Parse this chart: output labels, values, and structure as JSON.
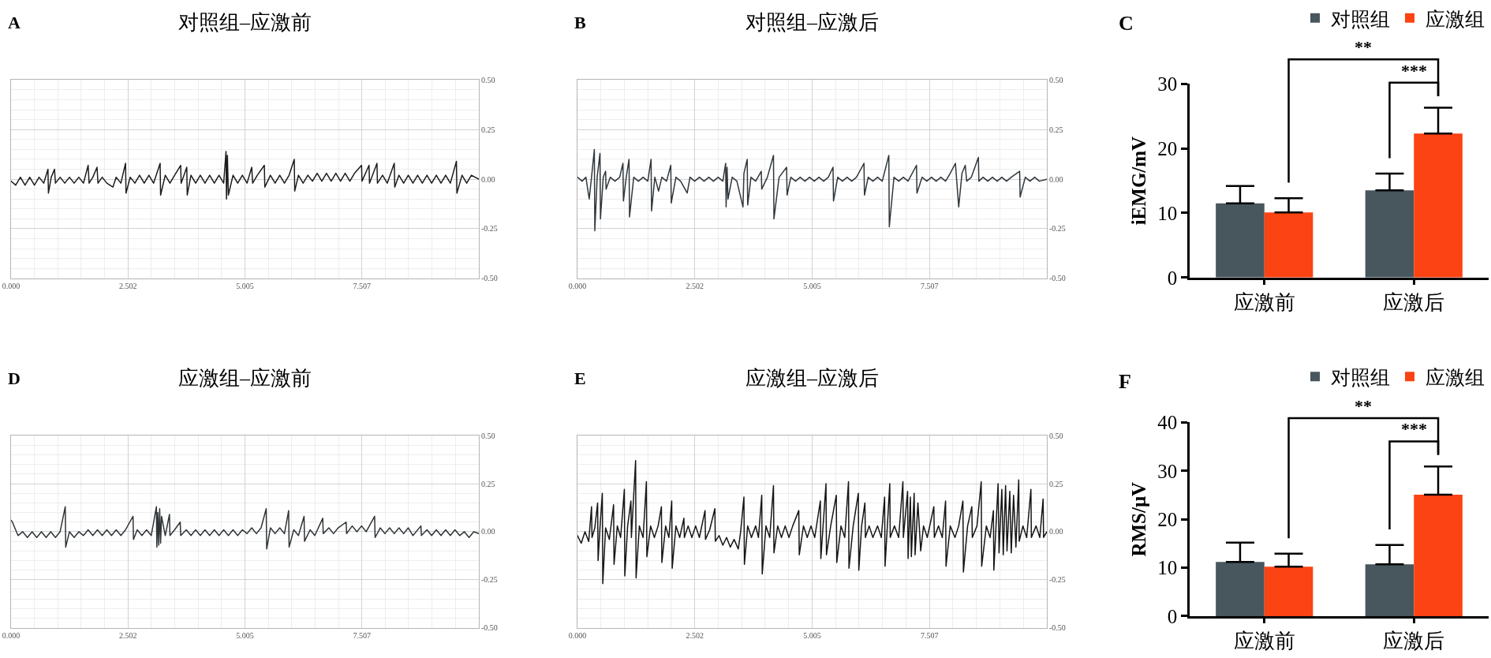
{
  "chart_data": [
    {
      "type": "line",
      "title": "对照组–应激前",
      "annotations": [
        "A"
      ],
      "series": [
        {
          "color": "#1c1c1c",
          "x": [
            0,
            0.1,
            0.2,
            0.3,
            0.4,
            0.5,
            0.6,
            0.7,
            0.79,
            0.8,
            0.86,
            0.93,
            0.95,
            1.05,
            1.15,
            1.25,
            1.35,
            1.45,
            1.55,
            1.65,
            1.67,
            1.75,
            1.84,
            1.86,
            1.95,
            2.05,
            2.18,
            2.25,
            2.35,
            2.45,
            2.46,
            2.55,
            2.65,
            2.75,
            2.85,
            2.95,
            3.05,
            3.19,
            3.2,
            3.3,
            3.4,
            3.5,
            3.63,
            3.64,
            3.76,
            3.77,
            3.85,
            3.95,
            4.05,
            4.15,
            4.25,
            4.35,
            4.45,
            4.55,
            4.6,
            4.61,
            4.63,
            4.65,
            4.75,
            4.85,
            4.95,
            5.05,
            5.15,
            5.17,
            5.27,
            5.42,
            5.43,
            5.55,
            5.65,
            5.75,
            5.85,
            5.95,
            6.06,
            6.07,
            6.15,
            6.25,
            6.35,
            6.45,
            6.55,
            6.65,
            6.75,
            6.85,
            6.95,
            7.05,
            7.15,
            7.25,
            7.35,
            7.5,
            7.51,
            7.66,
            7.67,
            7.83,
            7.84,
            7.95,
            8.05,
            8.2,
            8.21,
            8.3,
            8.4,
            8.5,
            8.6,
            8.7,
            8.8,
            8.9,
            9,
            9.1,
            9.2,
            9.3,
            9.4,
            9.53,
            9.54,
            9.65,
            9.75,
            9.85,
            10.01
          ],
          "values": [
            -0.01,
            -0.03,
            0.01,
            -0.03,
            0.01,
            -0.03,
            0.01,
            -0.02,
            0.05,
            -0.07,
            0.01,
            0.05,
            -0.02,
            0.01,
            -0.02,
            0.01,
            -0.02,
            0.01,
            -0.02,
            0.07,
            -0.02,
            0.01,
            0.06,
            -0.02,
            0.01,
            -0.02,
            -0.04,
            0.01,
            -0.02,
            0.08,
            -0.07,
            0.01,
            -0.02,
            0.02,
            -0.02,
            0.02,
            -0.02,
            0.08,
            -0.08,
            0.02,
            -0.02,
            0.02,
            0.07,
            -0.02,
            0.06,
            -0.08,
            0.02,
            -0.02,
            0.02,
            -0.02,
            0.02,
            -0.02,
            0.02,
            -0.02,
            0.14,
            -0.1,
            0.12,
            -0.08,
            0.02,
            -0.02,
            0.02,
            -0.02,
            0.06,
            -0.02,
            0.02,
            0.07,
            -0.04,
            0.02,
            -0.02,
            0.02,
            -0.02,
            0.02,
            0.1,
            -0.06,
            0.02,
            -0.02,
            0.02,
            -0.01,
            0.03,
            -0.01,
            0.03,
            -0.01,
            0.03,
            -0.01,
            0.03,
            -0.01,
            0.03,
            0.07,
            -0.01,
            0.07,
            -0.02,
            0.08,
            -0.02,
            0.02,
            -0.02,
            0.08,
            -0.04,
            0.02,
            -0.02,
            0.02,
            -0.02,
            0.02,
            -0.02,
            0.02,
            -0.02,
            0.02,
            -0.02,
            0.02,
            -0.02,
            0.09,
            -0.07,
            0.02,
            -0.02,
            0.02,
            0
          ]
        }
      ],
      "xlim": [
        0,
        10.01
      ],
      "xticks": [
        {
          "value": 0,
          "label": "0.000"
        },
        {
          "value": 2.502,
          "label": "2.502"
        },
        {
          "value": 5.005,
          "label": "5.005"
        },
        {
          "value": 7.507,
          "label": "7.507"
        }
      ],
      "ylim": [
        -0.5,
        0.5
      ],
      "yticks": [
        {
          "value": -0.5,
          "label": "-0.50"
        },
        {
          "value": -0.25,
          "label": "-0.25"
        },
        {
          "value": 0,
          "label": "0.00"
        },
        {
          "value": 0.25,
          "label": "0.25"
        },
        {
          "value": 0.5,
          "label": "0.50"
        }
      ],
      "grid": true
    },
    {
      "type": "line",
      "title": "对照组–应激后",
      "annotations": [
        "B"
      ],
      "series": [
        {
          "color": "#30373c",
          "x": [
            0,
            0.1,
            0.18,
            0.25,
            0.3,
            0.36,
            0.37,
            0.42,
            0.48,
            0.49,
            0.55,
            0.6,
            0.61,
            0.7,
            0.8,
            0.9,
            0.97,
            0.98,
            1.04,
            1.1,
            1.11,
            1.2,
            1.3,
            1.4,
            1.5,
            1.57,
            1.58,
            1.65,
            1.73,
            1.8,
            1.9,
            1.99,
            2,
            2.1,
            2.2,
            2.34,
            2.4,
            2.5,
            2.6,
            2.7,
            2.8,
            2.9,
            3,
            3.1,
            3.16,
            3.17,
            3.19,
            3.21,
            3.3,
            3.4,
            3.53,
            3.55,
            3.62,
            3.63,
            3.7,
            3.8,
            3.92,
            3.93,
            4.05,
            4.18,
            4.19,
            4.3,
            4.46,
            4.47,
            4.55,
            4.65,
            4.75,
            4.85,
            4.95,
            5.05,
            5.15,
            5.25,
            5.35,
            5.45,
            5.46,
            5.55,
            5.65,
            5.75,
            5.85,
            5.95,
            6.11,
            6.12,
            6.2,
            6.3,
            6.4,
            6.5,
            6.64,
            6.65,
            6.75,
            6.85,
            6.95,
            7.05,
            7.23,
            7.24,
            7.35,
            7.45,
            7.55,
            7.65,
            7.75,
            7.85,
            7.95,
            8.06,
            8.13,
            8.2,
            8.27,
            8.3,
            8.4,
            8.55,
            8.56,
            8.65,
            8.75,
            8.85,
            8.95,
            9.05,
            9.15,
            9.25,
            9.43,
            9.44,
            9.55,
            9.65,
            9.75,
            9.85,
            10.01
          ],
          "values": [
            0.01,
            -0.01,
            0.01,
            -0.1,
            0.01,
            0.15,
            -0.26,
            0.01,
            0.13,
            -0.2,
            0.01,
            0.04,
            -0.05,
            0.01,
            -0.01,
            0.01,
            0.08,
            -0.11,
            0.01,
            0.1,
            -0.19,
            0.01,
            -0.01,
            0.01,
            -0.01,
            0.1,
            -0.16,
            0.01,
            -0.06,
            0.01,
            -0.01,
            0.07,
            -0.12,
            0.01,
            -0.01,
            -0.07,
            0.01,
            -0.01,
            0.01,
            -0.01,
            0.01,
            -0.01,
            0.01,
            -0.01,
            0.08,
            -0.14,
            0.06,
            -0.1,
            0.01,
            -0.01,
            -0.14,
            0.03,
            0.1,
            -0.13,
            0.01,
            -0.01,
            0.04,
            -0.05,
            0.01,
            0.12,
            -0.2,
            0.01,
            0.06,
            -0.08,
            0.01,
            -0.01,
            0.01,
            -0.01,
            0.01,
            -0.01,
            0.01,
            -0.01,
            0.01,
            0.06,
            -0.11,
            0.01,
            -0.01,
            0.01,
            -0.01,
            0.01,
            0.08,
            -0.08,
            0.01,
            -0.01,
            0.01,
            -0.01,
            0.12,
            -0.24,
            0.01,
            -0.01,
            0.01,
            -0.01,
            0.07,
            -0.07,
            0.01,
            -0.01,
            0.01,
            -0.01,
            0.01,
            -0.01,
            0.03,
            0.08,
            -0.14,
            0.03,
            0.07,
            -0.01,
            0.01,
            0.11,
            -0.01,
            0.01,
            -0.01,
            0.01,
            -0.01,
            0.01,
            -0.01,
            0.01,
            0.04,
            -0.09,
            0.01,
            -0.01,
            0.01,
            -0.01,
            0
          ]
        }
      ],
      "xlim": [
        0,
        10.01
      ],
      "xticks": [
        {
          "value": 0,
          "label": "0.000"
        },
        {
          "value": 2.502,
          "label": "2.502"
        },
        {
          "value": 5.005,
          "label": "5.005"
        },
        {
          "value": 7.507,
          "label": "7.507"
        }
      ],
      "ylim": [
        -0.5,
        0.5
      ],
      "yticks": [
        {
          "value": -0.5,
          "label": "-0.50"
        },
        {
          "value": -0.25,
          "label": "-0.25"
        },
        {
          "value": 0,
          "label": "0.00"
        },
        {
          "value": 0.25,
          "label": "0.25"
        },
        {
          "value": 0.5,
          "label": "0.50"
        }
      ],
      "grid": true
    },
    {
      "type": "bar",
      "annotations": [
        "C",
        "**",
        "***"
      ],
      "categories": [
        "应激前",
        "应激后"
      ],
      "series": [
        {
          "name": "对照组",
          "color": "#48565e",
          "values": [
            11.5,
            13.5
          ],
          "errors": [
            [
              11.5,
              14.2
            ],
            [
              13.5,
              16.1
            ]
          ]
        },
        {
          "name": "应激组",
          "color": "#fc4314",
          "values": [
            10.1,
            22.3
          ],
          "errors": [
            [
              10.1,
              12.3
            ],
            [
              22.3,
              26.3
            ]
          ]
        }
      ],
      "ylabel": "iEMG/mV",
      "ylim": [
        0,
        30
      ],
      "yticks": [
        0,
        10,
        20,
        30
      ],
      "legend": "top right"
    },
    {
      "type": "line",
      "title": "应激组–应激前",
      "annotations": [
        "D"
      ],
      "series": [
        {
          "color": "#2f3437",
          "x": [
            0,
            0.03,
            0.08,
            0.15,
            0.25,
            0.35,
            0.45,
            0.55,
            0.65,
            0.75,
            0.85,
            0.95,
            1.05,
            1.16,
            1.17,
            1.25,
            1.35,
            1.45,
            1.55,
            1.65,
            1.75,
            1.85,
            1.95,
            2.05,
            2.15,
            2.25,
            2.35,
            2.45,
            2.61,
            2.62,
            2.7,
            2.8,
            2.9,
            3,
            3.11,
            3.12,
            3.14,
            3.16,
            3.18,
            3.2,
            3.22,
            3.3,
            3.39,
            3.4,
            3.5,
            3.62,
            3.63,
            3.75,
            3.85,
            3.95,
            4.05,
            4.15,
            4.25,
            4.35,
            4.45,
            4.55,
            4.65,
            4.75,
            4.85,
            4.95,
            5.05,
            5.15,
            5.25,
            5.35,
            5.46,
            5.47,
            5.55,
            5.65,
            5.75,
            5.85,
            5.94,
            5.95,
            6.05,
            6.15,
            6.27,
            6.28,
            6.4,
            6.5,
            6.67,
            6.68,
            6.8,
            6.9,
            7,
            7.17,
            7.18,
            7.3,
            7.4,
            7.5,
            7.6,
            7.78,
            7.79,
            7.9,
            8,
            8.1,
            8.2,
            8.3,
            8.4,
            8.5,
            8.6,
            8.77,
            8.78,
            8.9,
            9,
            9.1,
            9.2,
            9.3,
            9.4,
            9.5,
            9.6,
            9.7,
            9.8,
            9.9,
            10.01
          ],
          "values": [
            0.06,
            0.05,
            0.02,
            -0.02,
            0,
            -0.03,
            0,
            -0.03,
            0,
            -0.03,
            0,
            -0.03,
            0,
            0.13,
            -0.08,
            0,
            -0.03,
            0,
            -0.02,
            0.01,
            -0.02,
            0.01,
            -0.02,
            0.01,
            -0.02,
            0.01,
            -0.02,
            0.01,
            0.08,
            -0.04,
            0.01,
            -0.02,
            0.01,
            -0.02,
            0.13,
            -0.08,
            0.1,
            -0.07,
            0.12,
            -0.06,
            0.08,
            -0.02,
            0.09,
            -0.02,
            0.01,
            0.05,
            -0.02,
            0.01,
            -0.02,
            0.01,
            -0.02,
            0.01,
            -0.02,
            0.01,
            -0.02,
            0.01,
            -0.02,
            0.01,
            -0.02,
            0.01,
            -0.01,
            0.02,
            -0.01,
            0.02,
            0.12,
            -0.09,
            0.02,
            -0.01,
            0.02,
            -0.01,
            0.11,
            -0.08,
            0.01,
            -0.02,
            0.08,
            -0.05,
            0.01,
            -0.02,
            0.07,
            -0.01,
            0.02,
            -0.01,
            0.02,
            0.05,
            -0.01,
            0.03,
            0,
            0.03,
            0,
            0.08,
            -0.03,
            0.02,
            -0.01,
            0.02,
            -0.01,
            0.02,
            -0.01,
            0.02,
            -0.02,
            0.03,
            -0.02,
            0.01,
            -0.02,
            0.01,
            -0.02,
            0.01,
            -0.02,
            0.01,
            -0.02,
            0,
            -0.03,
            0,
            -0.01
          ]
        }
      ],
      "xlim": [
        0,
        10.01
      ],
      "xticks": [
        {
          "value": 0,
          "label": "0.000"
        },
        {
          "value": 2.502,
          "label": "2.502"
        },
        {
          "value": 5.005,
          "label": "5.005"
        },
        {
          "value": 7.507,
          "label": "7.507"
        }
      ],
      "ylim": [
        -0.5,
        0.5
      ],
      "yticks": [
        {
          "value": -0.5,
          "label": "-0.50"
        },
        {
          "value": -0.25,
          "label": "-0.25"
        },
        {
          "value": 0,
          "label": "0.00"
        },
        {
          "value": 0.25,
          "label": "0.25"
        },
        {
          "value": 0.5,
          "label": "0.50"
        }
      ],
      "grid": true
    },
    {
      "type": "line",
      "title": "应激组–应激后",
      "annotations": [
        "E"
      ],
      "series": [
        {
          "color": "#151515",
          "x": [
            0,
            0.08,
            0.16,
            0.24,
            0.3,
            0.31,
            0.37,
            0.43,
            0.44,
            0.48,
            0.53,
            0.54,
            0.6,
            0.68,
            0.77,
            0.78,
            0.85,
            0.92,
            1,
            1.01,
            1.07,
            1.14,
            1.15,
            1.24,
            1.25,
            1.32,
            1.4,
            1.47,
            1.48,
            1.56,
            1.64,
            1.72,
            1.79,
            1.8,
            1.88,
            1.95,
            2.01,
            2.02,
            2.1,
            2.18,
            2.27,
            2.28,
            2.36,
            2.44,
            2.52,
            2.6,
            2.72,
            2.73,
            2.82,
            2.93,
            2.94,
            3.02,
            3.1,
            3.18,
            3.26,
            3.34,
            3.43,
            3.48,
            3.55,
            3.56,
            3.63,
            3.71,
            3.8,
            3.86,
            3.93,
            3.94,
            4.02,
            4.1,
            4.18,
            4.19,
            4.27,
            4.35,
            4.43,
            4.51,
            4.59,
            4.72,
            4.73,
            4.82,
            4.9,
            4.98,
            5.06,
            5.18,
            5.19,
            5.3,
            5.31,
            5.4,
            5.52,
            5.53,
            5.62,
            5.7,
            5.78,
            5.79,
            5.88,
            5.99,
            6,
            6.06,
            6.13,
            6.14,
            6.22,
            6.3,
            6.4,
            6.48,
            6.55,
            6.56,
            6.66,
            6.67,
            6.76,
            6.85,
            6.94,
            6.95,
            7.04,
            7.05,
            7.1,
            7.12,
            7.18,
            7.2,
            7.26,
            7.32,
            7.38,
            7.46,
            7.6,
            7.61,
            7.7,
            7.78,
            7.85,
            7.86,
            7.95,
            8.05,
            8.13,
            8.22,
            8.23,
            8.32,
            8.41,
            8.42,
            8.52,
            8.61,
            8.62,
            8.72,
            8.8,
            8.87,
            8.88,
            8.97,
            8.99,
            9.05,
            9.08,
            9.13,
            9.16,
            9.22,
            9.25,
            9.3,
            9.35,
            9.41,
            9.42,
            9.5,
            9.58,
            9.67,
            9.68,
            9.78,
            9.86,
            9.93,
            9.94,
            10.01
          ],
          "values": [
            -0.02,
            -0.06,
            0,
            -0.05,
            0.13,
            -0.03,
            0.02,
            0.15,
            -0.15,
            0.02,
            0.2,
            -0.27,
            0.02,
            -0.04,
            0.14,
            -0.17,
            0.03,
            -0.03,
            0.22,
            -0.23,
            0.03,
            0.16,
            -0.03,
            0.37,
            -0.24,
            0.03,
            -0.03,
            0.26,
            -0.13,
            0.03,
            -0.03,
            0.03,
            0.13,
            -0.16,
            0.03,
            -0.03,
            0.16,
            -0.19,
            0.03,
            -0.03,
            0.07,
            -0.03,
            0.03,
            -0.03,
            0.03,
            -0.03,
            0.11,
            -0.04,
            0.01,
            0.12,
            -0.05,
            -0.02,
            -0.07,
            -0.03,
            -0.08,
            -0.04,
            -0.09,
            0,
            0.18,
            -0.17,
            0.03,
            -0.03,
            0.03,
            -0.03,
            0.19,
            -0.22,
            0.03,
            -0.03,
            0.24,
            -0.11,
            0.03,
            -0.03,
            0.03,
            -0.03,
            0.03,
            0.11,
            -0.12,
            0.03,
            -0.03,
            0.03,
            -0.03,
            0.16,
            -0.14,
            0.25,
            -0.12,
            0.03,
            0.19,
            -0.16,
            0.03,
            -0.03,
            0.26,
            -0.19,
            0.03,
            0.2,
            -0.2,
            0.03,
            0.15,
            -0.03,
            0.03,
            -0.03,
            0.03,
            -0.03,
            0.18,
            -0.18,
            0.25,
            -0.03,
            0.03,
            -0.03,
            0.26,
            -0.03,
            0.21,
            -0.14,
            0.18,
            -0.13,
            0.2,
            -0.12,
            0.15,
            -0.1,
            0.03,
            -0.03,
            0.13,
            -0.03,
            0.03,
            -0.03,
            0.16,
            -0.18,
            0.03,
            -0.03,
            0.03,
            0.16,
            -0.21,
            0.03,
            0.13,
            -0.03,
            0.03,
            0.26,
            -0.18,
            0.03,
            -0.03,
            0.11,
            -0.2,
            0.25,
            -0.11,
            0.22,
            -0.12,
            0.24,
            -0.1,
            0.21,
            -0.11,
            0.19,
            -0.08,
            0.27,
            -0.05,
            0.03,
            -0.03,
            0.22,
            -0.03,
            0.03,
            -0.03,
            0.17,
            -0.03,
            0
          ]
        }
      ],
      "xlim": [
        0,
        10.01
      ],
      "xticks": [
        {
          "value": 0,
          "label": "0.000"
        },
        {
          "value": 2.502,
          "label": "2.502"
        },
        {
          "value": 5.005,
          "label": "5.005"
        },
        {
          "value": 7.507,
          "label": "7.507"
        }
      ],
      "ylim": [
        -0.5,
        0.5
      ],
      "yticks": [
        {
          "value": -0.5,
          "label": "-0.50"
        },
        {
          "value": -0.25,
          "label": "-0.25"
        },
        {
          "value": 0,
          "label": "0.00"
        },
        {
          "value": 0.25,
          "label": "0.25"
        },
        {
          "value": 0.5,
          "label": "0.50"
        }
      ],
      "grid": true
    },
    {
      "type": "bar",
      "annotations": [
        "F",
        "**",
        "***"
      ],
      "categories": [
        "应激前",
        "应激后"
      ],
      "series": [
        {
          "name": "对照组",
          "color": "#48565e",
          "values": [
            11.2,
            10.7
          ],
          "errors": [
            [
              11.2,
              15.2
            ],
            [
              10.7,
              14.7
            ]
          ]
        },
        {
          "name": "应激组",
          "color": "#fc4314",
          "values": [
            10.2,
            25.1
          ],
          "errors": [
            [
              10.2,
              12.9
            ],
            [
              25.1,
              30.9
            ]
          ]
        }
      ],
      "ylabel": "RMS/μV",
      "ylim": [
        0,
        40
      ],
      "yticks": [
        0,
        10,
        20,
        30,
        40
      ],
      "legend": "top right"
    }
  ]
}
